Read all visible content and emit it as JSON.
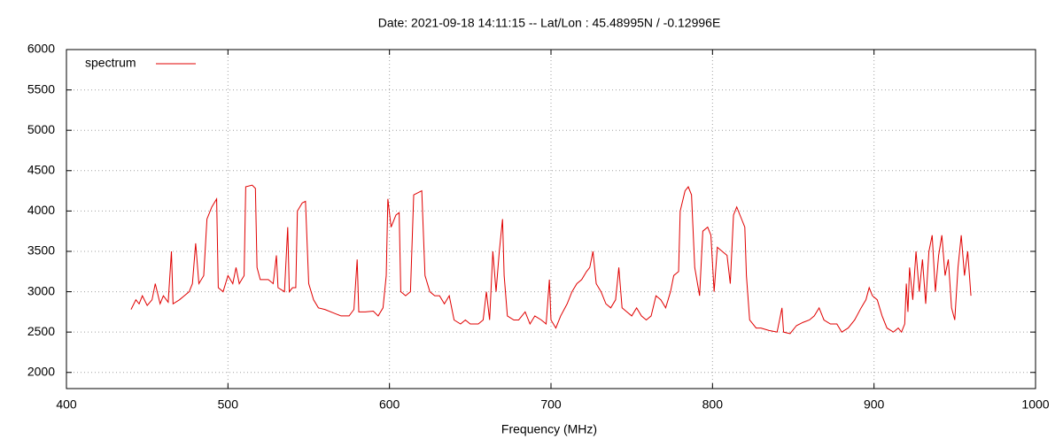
{
  "chart_data": {
    "type": "line",
    "title": "Date: 2021-09-18 14:11:15  --  Lat/Lon : 45.48995N / -0.12996E",
    "x_label": "Frequency (MHz)",
    "xlim": [
      400,
      1000
    ],
    "xticks": [
      400,
      500,
      600,
      700,
      800,
      900,
      1000
    ],
    "ylim": [
      1800,
      6000
    ],
    "yticks": [
      2000,
      2500,
      3000,
      3500,
      4000,
      4500,
      5000,
      5500,
      6000
    ],
    "grid": true,
    "legend": "top-left",
    "x": [
      440,
      443,
      445,
      447,
      450,
      453,
      455,
      458,
      460,
      463,
      465,
      466,
      470,
      473,
      476,
      478,
      480,
      482,
      485,
      487,
      490,
      493,
      494,
      497,
      500,
      503,
      505,
      507,
      510,
      511,
      515,
      517,
      518,
      520,
      525,
      528,
      530,
      531,
      535,
      537,
      538,
      540,
      542,
      543,
      546,
      548,
      550,
      553,
      556,
      560,
      565,
      570,
      575,
      578,
      580,
      581,
      585,
      590,
      593,
      596,
      598,
      599,
      601,
      604,
      606,
      607,
      610,
      613,
      615,
      620,
      622,
      625,
      628,
      631,
      634,
      637,
      640,
      644,
      647,
      650,
      655,
      658,
      660,
      662,
      664,
      666,
      668,
      670,
      671,
      673,
      677,
      680,
      684,
      687,
      690,
      694,
      697,
      699,
      700,
      703,
      706,
      710,
      713,
      716,
      719,
      722,
      724,
      726,
      728,
      731,
      734,
      737,
      740,
      742,
      744,
      747,
      750,
      753,
      756,
      759,
      762,
      765,
      768,
      771,
      774,
      776,
      779,
      780,
      783,
      785,
      787,
      789,
      792,
      794,
      797,
      799,
      801,
      803,
      806,
      809,
      811,
      813,
      815,
      818,
      820,
      821,
      823,
      827,
      830,
      835,
      840,
      843,
      844,
      848,
      852,
      856,
      860,
      863,
      866,
      869,
      873,
      877,
      880,
      884,
      888,
      892,
      895,
      897,
      899,
      902,
      905,
      908,
      912,
      915,
      917,
      919,
      920,
      921,
      922,
      924,
      926,
      928,
      930,
      932,
      934,
      936,
      938,
      940,
      942,
      944,
      946,
      948,
      950,
      952,
      954,
      956,
      958,
      960
    ],
    "series": [
      {
        "name": "spectrum",
        "color": "#e00000",
        "values": [
          2780,
          2900,
          2850,
          2950,
          2830,
          2900,
          3100,
          2850,
          2950,
          2870,
          3500,
          2850,
          2900,
          2950,
          3000,
          3100,
          3600,
          3100,
          3200,
          3900,
          4050,
          4150,
          3050,
          3000,
          3200,
          3100,
          3300,
          3100,
          3200,
          4300,
          4320,
          4280,
          3300,
          3150,
          3150,
          3100,
          3450,
          3050,
          3000,
          3800,
          3000,
          3050,
          3050,
          4000,
          4100,
          4120,
          3100,
          2900,
          2800,
          2780,
          2740,
          2700,
          2700,
          2780,
          3400,
          2750,
          2750,
          2760,
          2700,
          2800,
          3200,
          4150,
          3800,
          3950,
          3980,
          3000,
          2950,
          3000,
          4200,
          4250,
          3200,
          3000,
          2950,
          2950,
          2850,
          2950,
          2650,
          2600,
          2650,
          2600,
          2600,
          2650,
          3000,
          2650,
          3500,
          3000,
          3500,
          3900,
          3200,
          2700,
          2650,
          2650,
          2750,
          2600,
          2700,
          2650,
          2600,
          3150,
          2650,
          2550,
          2700,
          2850,
          3000,
          3100,
          3150,
          3250,
          3300,
          3500,
          3100,
          3000,
          2850,
          2800,
          2900,
          3300,
          2800,
          2750,
          2700,
          2800,
          2700,
          2650,
          2700,
          2950,
          2900,
          2800,
          3000,
          3200,
          3250,
          4000,
          4250,
          4300,
          4200,
          3300,
          2950,
          3750,
          3800,
          3700,
          3000,
          3550,
          3500,
          3450,
          3100,
          3950,
          4050,
          3900,
          3800,
          3200,
          2650,
          2550,
          2550,
          2520,
          2500,
          2800,
          2500,
          2480,
          2580,
          2620,
          2650,
          2700,
          2800,
          2650,
          2600,
          2600,
          2500,
          2550,
          2650,
          2800,
          2900,
          3050,
          2950,
          2900,
          2700,
          2550,
          2500,
          2550,
          2500,
          2600,
          3100,
          2750,
          3300,
          2900,
          3500,
          3000,
          3400,
          2850,
          3500,
          3700,
          3000,
          3450,
          3700,
          3200,
          3400,
          2800,
          2650,
          3300,
          3700,
          3200,
          3500,
          2950
        ]
      }
    ]
  }
}
